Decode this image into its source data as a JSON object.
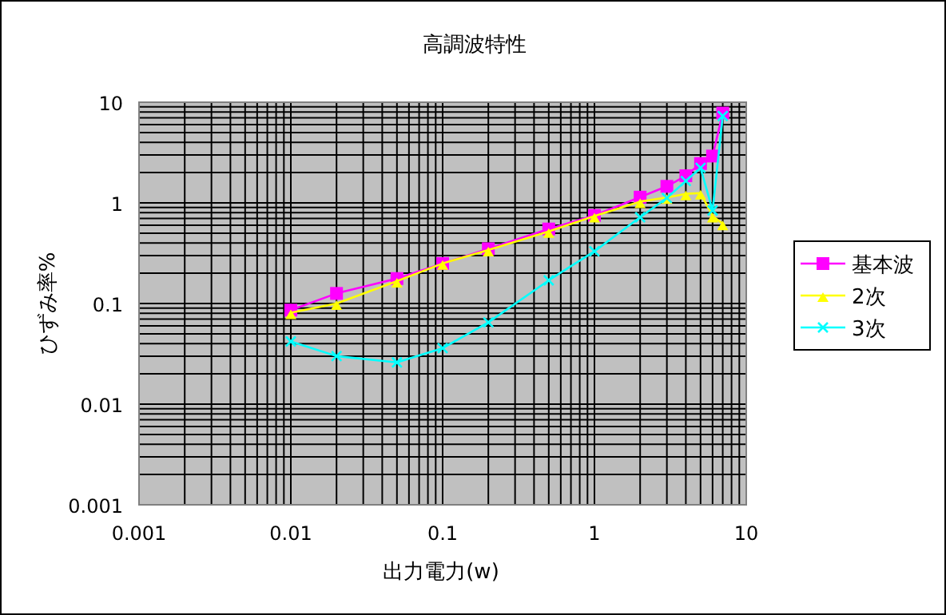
{
  "chart_data": {
    "type": "line",
    "title": "高調波特性",
    "xlabel": "出力電力(w)",
    "ylabel": "ひずみ率%",
    "log": "xy",
    "grid": true,
    "legend": "right",
    "x": [
      0.01,
      0.02,
      0.05,
      0.1,
      0.2,
      0.5,
      1,
      2,
      3,
      4,
      5,
      6,
      7
    ],
    "xlim": [
      0.001,
      10
    ],
    "ylim": [
      0.001,
      10
    ],
    "xticks": [
      0.001,
      0.01,
      0.1,
      1,
      10
    ],
    "yticks": [
      0.001,
      0.01,
      0.1,
      1,
      10
    ],
    "series": [
      {
        "name": "基本波",
        "color": "#ff00ff",
        "marker": "square",
        "values": [
          0.086,
          0.126,
          0.177,
          0.25,
          0.35,
          0.55,
          0.75,
          1.14,
          1.46,
          1.86,
          2.46,
          2.92,
          7.8
        ]
      },
      {
        "name": "2次",
        "color": "#ffff00",
        "marker": "triangle",
        "values": [
          0.081,
          0.1,
          0.167,
          0.25,
          0.34,
          0.52,
          0.74,
          1.03,
          1.13,
          1.23,
          1.25,
          0.74,
          0.62
        ]
      },
      {
        "name": "3次",
        "color": "#00ffff",
        "marker": "cross",
        "values": [
          0.042,
          0.03,
          0.026,
          0.036,
          0.065,
          0.17,
          0.33,
          0.72,
          1.12,
          1.65,
          2.23,
          0.84,
          7.3
        ]
      }
    ]
  }
}
